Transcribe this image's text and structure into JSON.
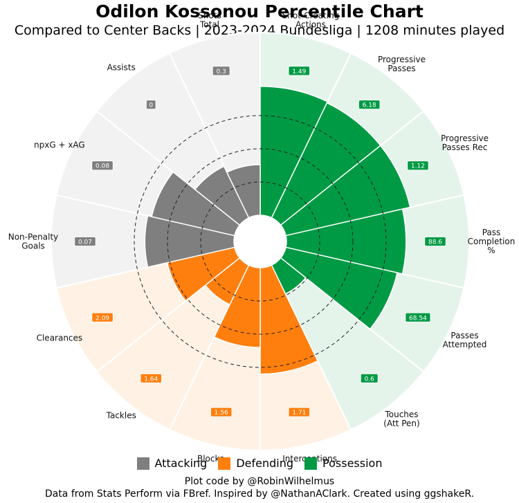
{
  "chart_data": {
    "type": "radial-bar",
    "title": "Odilon Kossonou Percentile Chart",
    "subtitle": "Compared to Center Backs | 2023-2024 Bundesliga | 1208 minutes played",
    "rlim": [
      0,
      100
    ],
    "gridlines": [
      25,
      50,
      75
    ],
    "groups": [
      {
        "name": "Attacking",
        "color": "#7f7f7f",
        "background": "#f2f2f2"
      },
      {
        "name": "Defending",
        "color": "#ff7f0e",
        "background": "#fff2e5"
      },
      {
        "name": "Possession",
        "color": "#009a44",
        "background": "#e5f4eb"
      }
    ],
    "metrics": [
      {
        "label": "Shot-Creating\nActions",
        "value": "1.49",
        "percentile": 97,
        "group": "Possession"
      },
      {
        "label": "Progressive\nPasses",
        "value": "6.18",
        "percentile": 96,
        "group": "Possession"
      },
      {
        "label": "Progressive\nPasses Rec",
        "value": "1.12",
        "percentile": 96,
        "group": "Possession"
      },
      {
        "label": "Pass\nCompletion\n%",
        "value": "88.6",
        "percentile": 90,
        "group": "Possession"
      },
      {
        "label": "Passes\nAttempted",
        "value": "68.54",
        "percentile": 86,
        "group": "Possession"
      },
      {
        "label": "Touches\n(Att Pen)",
        "value": "0.6",
        "percentile": 24,
        "group": "Possession"
      },
      {
        "label": "Interceptions",
        "value": "1.71",
        "percentile": 80,
        "group": "Defending"
      },
      {
        "label": "Blocks",
        "value": "1.56",
        "percentile": 60,
        "group": "Defending"
      },
      {
        "label": "Tackles",
        "value": "1.64",
        "percentile": 33,
        "group": "Defending"
      },
      {
        "label": "Clearances",
        "value": "2.09",
        "percentile": 52,
        "group": "Defending"
      },
      {
        "label": "Non-Penalty\nGoals",
        "value": "0.07",
        "percentile": 67,
        "group": "Attacking"
      },
      {
        "label": "npxG + xAG",
        "value": "0.08",
        "percentile": 64,
        "group": "Attacking"
      },
      {
        "label": "Assists",
        "value": "0",
        "percentile": 43,
        "group": "Attacking"
      },
      {
        "label": "Shots\nTotal",
        "value": "0.3",
        "percentile": 38,
        "group": "Attacking"
      }
    ]
  },
  "legend": [
    {
      "name": "Attacking",
      "color": "#7f7f7f"
    },
    {
      "name": "Defending",
      "color": "#ff7f0e"
    },
    {
      "name": "Possession",
      "color": "#009a44"
    }
  ],
  "credits": {
    "line1": "Plot code by @RobinWilhelmus",
    "line2": "Data from Stats Perform via FBref. Inspired by @NathanAClark. Created using ggshakeR."
  }
}
